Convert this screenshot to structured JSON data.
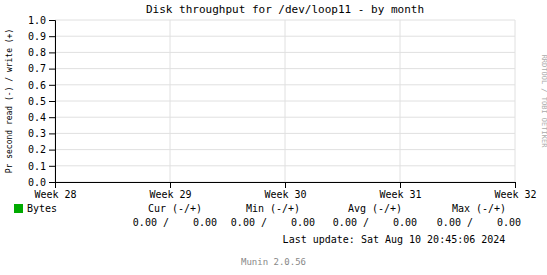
{
  "chart_data": {
    "type": "line",
    "title": "Disk throughput for /dev/loop11 - by month",
    "y_label": "Pr second read (-) / write (+)",
    "categories": [
      "Week 28",
      "Week 29",
      "Week 30",
      "Week 31",
      "Week 32"
    ],
    "series": [
      {
        "name": "Bytes",
        "color": "#00aa00",
        "values": [
          null,
          null,
          null,
          null,
          null
        ]
      }
    ],
    "ylim": [
      0.0,
      1.0
    ],
    "yticks": [
      {
        "value": 0.0,
        "label": "0.0"
      },
      0.1,
      0.2,
      0.3,
      0.4,
      0.5,
      0.6,
      0.7,
      0.8,
      0.9,
      {
        "value": 1.0,
        "label": "1.0"
      }
    ],
    "grid": true,
    "annotations": [
      "RRDTOOL / TOBI OETIKER",
      "Cur (-/+)",
      "Min (-/+)",
      "Avg (-/+)",
      "Max (-/+)",
      "0.00 /    0.00",
      "0.00 /    0.00",
      "0.00 /    0.00",
      "0.00 /    0.00",
      "Last update: Sat Aug 10 20:45:06 2024",
      "Munin 2.0.56"
    ]
  }
}
